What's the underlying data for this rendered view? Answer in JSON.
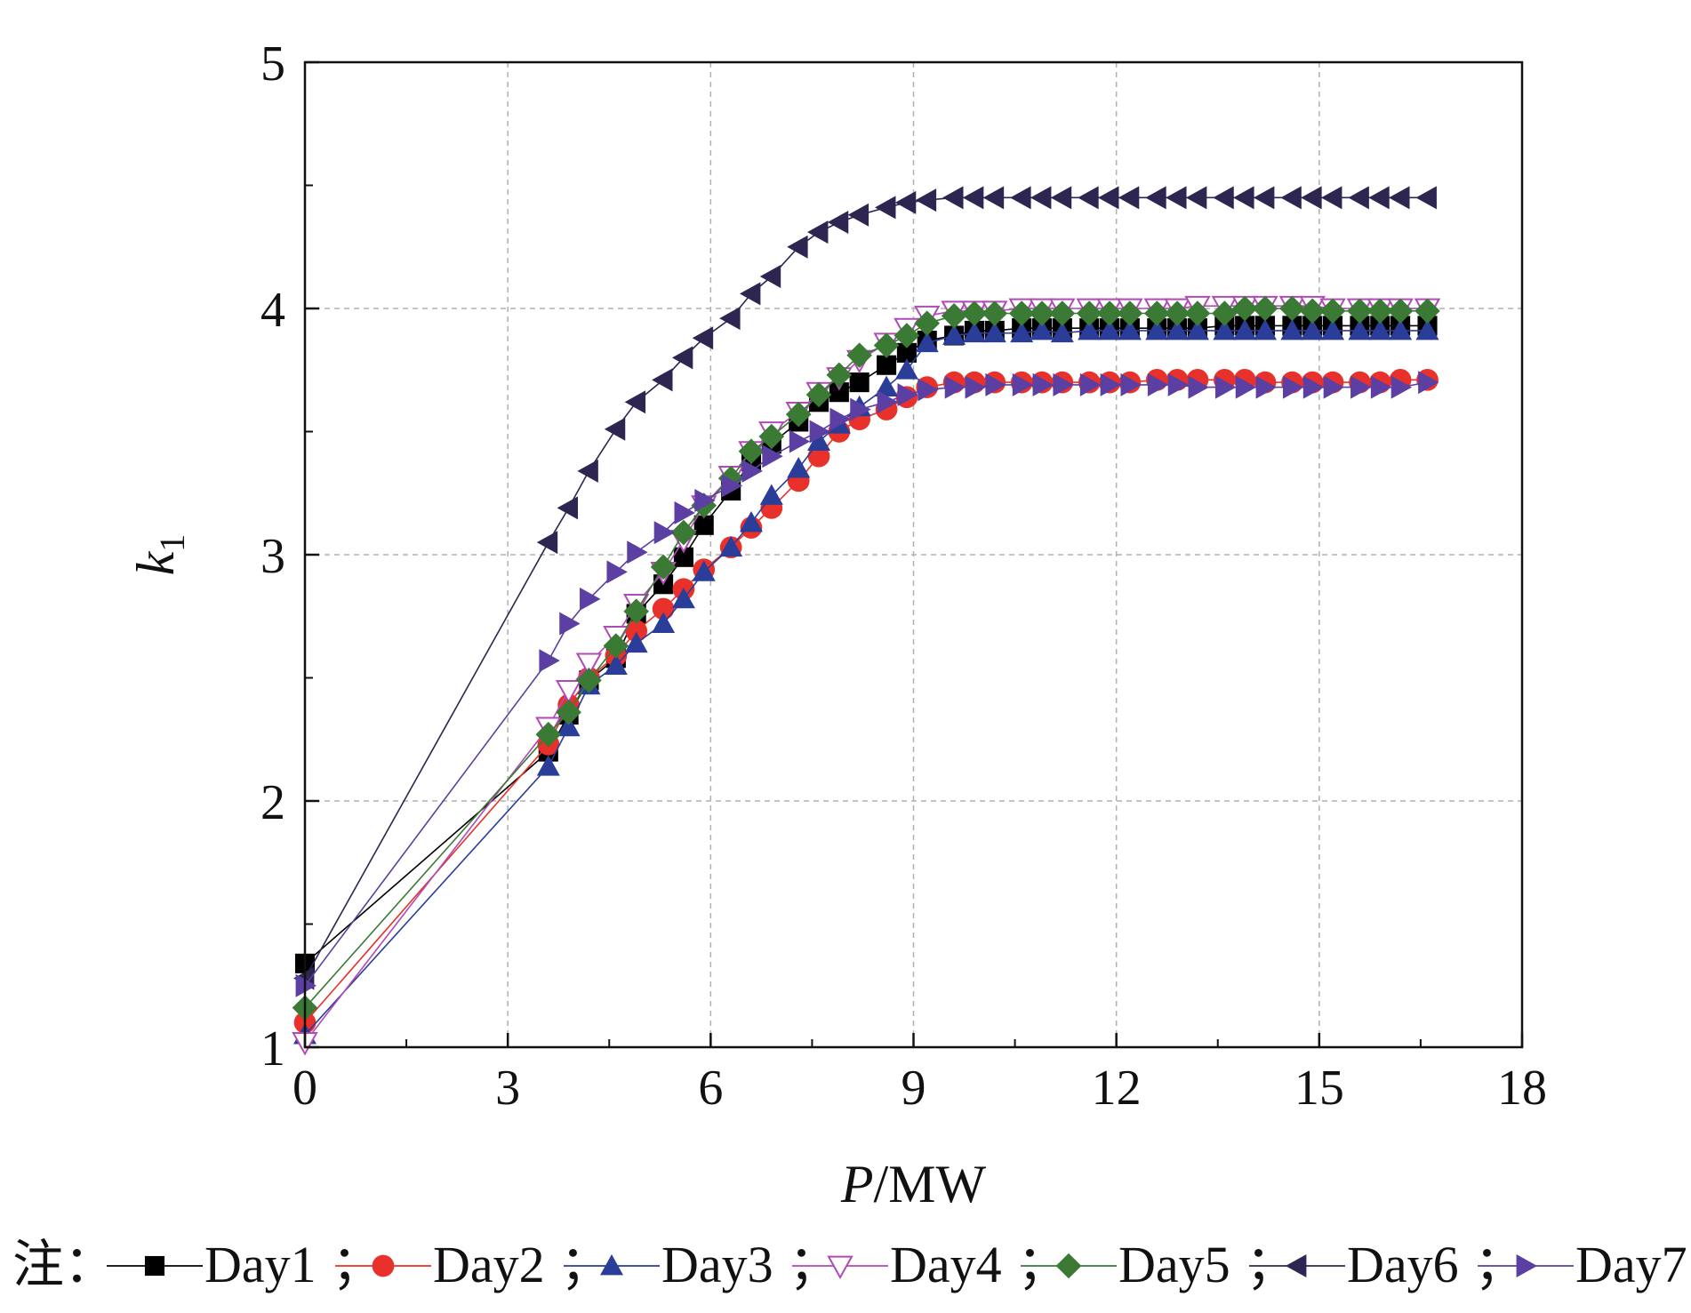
{
  "chart_data": {
    "type": "line",
    "xlabel": {
      "italic": "P",
      "rest": "/MW"
    },
    "ylabel": {
      "italic": "k",
      "subscript": "1"
    },
    "xlim": [
      0,
      18
    ],
    "ylim": [
      1,
      5
    ],
    "xticks": [
      "0",
      "3",
      "6",
      "9",
      "12",
      "15",
      "18"
    ],
    "yticks": [
      "1",
      "2",
      "3",
      "4",
      "5"
    ],
    "grid": true,
    "legend_position": "bottom",
    "legend_note": "注：",
    "legend_sep": "；",
    "legend_end": "。",
    "series": [
      {
        "name": "Day1",
        "color": "#000000",
        "marker": "square",
        "points": [
          [
            0,
            1.34
          ],
          [
            3.6,
            2.2
          ],
          [
            3.9,
            2.35
          ],
          [
            4.2,
            2.49
          ],
          [
            4.6,
            2.58
          ],
          [
            4.9,
            2.76
          ],
          [
            5.3,
            2.88
          ],
          [
            5.6,
            2.99
          ],
          [
            5.9,
            3.12
          ],
          [
            6.3,
            3.26
          ],
          [
            6.6,
            3.38
          ],
          [
            6.9,
            3.45
          ],
          [
            7.3,
            3.54
          ],
          [
            7.6,
            3.62
          ],
          [
            7.9,
            3.66
          ],
          [
            8.2,
            3.7
          ],
          [
            8.6,
            3.77
          ],
          [
            8.9,
            3.82
          ],
          [
            9.2,
            3.87
          ],
          [
            9.6,
            3.89
          ],
          [
            9.9,
            3.91
          ],
          [
            10.2,
            3.91
          ],
          [
            10.6,
            3.92
          ],
          [
            10.9,
            3.92
          ],
          [
            11.2,
            3.92
          ],
          [
            11.6,
            3.92
          ],
          [
            11.9,
            3.92
          ],
          [
            12.2,
            3.92
          ],
          [
            12.6,
            3.92
          ],
          [
            12.9,
            3.92
          ],
          [
            13.2,
            3.92
          ],
          [
            13.6,
            3.93
          ],
          [
            13.9,
            3.93
          ],
          [
            14.2,
            3.93
          ],
          [
            14.6,
            3.93
          ],
          [
            14.9,
            3.93
          ],
          [
            15.2,
            3.93
          ],
          [
            15.6,
            3.93
          ],
          [
            15.9,
            3.93
          ],
          [
            16.2,
            3.93
          ],
          [
            16.6,
            3.93
          ]
        ]
      },
      {
        "name": "Day2",
        "color": "#e8312a",
        "marker": "circle",
        "points": [
          [
            0,
            1.1
          ],
          [
            3.6,
            2.23
          ],
          [
            3.9,
            2.39
          ],
          [
            4.2,
            2.5
          ],
          [
            4.6,
            2.59
          ],
          [
            4.9,
            2.69
          ],
          [
            5.3,
            2.78
          ],
          [
            5.6,
            2.86
          ],
          [
            5.9,
            2.94
          ],
          [
            6.3,
            3.03
          ],
          [
            6.6,
            3.11
          ],
          [
            6.9,
            3.19
          ],
          [
            7.3,
            3.3
          ],
          [
            7.6,
            3.4
          ],
          [
            7.9,
            3.5
          ],
          [
            8.2,
            3.55
          ],
          [
            8.6,
            3.59
          ],
          [
            8.9,
            3.64
          ],
          [
            9.2,
            3.68
          ],
          [
            9.6,
            3.7
          ],
          [
            9.9,
            3.7
          ],
          [
            10.2,
            3.7
          ],
          [
            10.6,
            3.7
          ],
          [
            10.9,
            3.7
          ],
          [
            11.2,
            3.7
          ],
          [
            11.6,
            3.7
          ],
          [
            11.9,
            3.7
          ],
          [
            12.2,
            3.7
          ],
          [
            12.6,
            3.71
          ],
          [
            12.9,
            3.71
          ],
          [
            13.2,
            3.71
          ],
          [
            13.6,
            3.71
          ],
          [
            13.9,
            3.71
          ],
          [
            14.2,
            3.7
          ],
          [
            14.6,
            3.7
          ],
          [
            14.9,
            3.7
          ],
          [
            15.2,
            3.7
          ],
          [
            15.6,
            3.7
          ],
          [
            15.9,
            3.7
          ],
          [
            16.2,
            3.71
          ],
          [
            16.6,
            3.71
          ]
        ]
      },
      {
        "name": "Day3",
        "color": "#2a3d99",
        "marker": "triangle-up",
        "points": [
          [
            0,
            1.05
          ],
          [
            3.6,
            2.14
          ],
          [
            3.9,
            2.3
          ],
          [
            4.2,
            2.47
          ],
          [
            4.6,
            2.55
          ],
          [
            4.9,
            2.64
          ],
          [
            5.3,
            2.72
          ],
          [
            5.6,
            2.82
          ],
          [
            5.9,
            2.93
          ],
          [
            6.3,
            3.03
          ],
          [
            6.6,
            3.13
          ],
          [
            6.9,
            3.24
          ],
          [
            7.3,
            3.35
          ],
          [
            7.6,
            3.46
          ],
          [
            7.9,
            3.53
          ],
          [
            8.2,
            3.6
          ],
          [
            8.6,
            3.68
          ],
          [
            8.9,
            3.75
          ],
          [
            9.2,
            3.86
          ],
          [
            9.6,
            3.89
          ],
          [
            9.9,
            3.9
          ],
          [
            10.2,
            3.9
          ],
          [
            10.6,
            3.9
          ],
          [
            10.9,
            3.91
          ],
          [
            11.2,
            3.9
          ],
          [
            11.6,
            3.91
          ],
          [
            11.9,
            3.91
          ],
          [
            12.2,
            3.91
          ],
          [
            12.6,
            3.91
          ],
          [
            12.9,
            3.91
          ],
          [
            13.2,
            3.91
          ],
          [
            13.6,
            3.91
          ],
          [
            13.9,
            3.91
          ],
          [
            14.2,
            3.91
          ],
          [
            14.6,
            3.91
          ],
          [
            14.9,
            3.91
          ],
          [
            15.2,
            3.91
          ],
          [
            15.6,
            3.91
          ],
          [
            15.9,
            3.91
          ],
          [
            16.2,
            3.91
          ],
          [
            16.6,
            3.91
          ]
        ]
      },
      {
        "name": "Day4",
        "color": "#b04ab5",
        "marker": "triangle-down-open",
        "points": [
          [
            0,
            1.02
          ],
          [
            3.6,
            2.3
          ],
          [
            3.9,
            2.45
          ],
          [
            4.2,
            2.56
          ],
          [
            4.6,
            2.67
          ],
          [
            4.9,
            2.8
          ],
          [
            5.3,
            2.93
          ],
          [
            5.6,
            3.06
          ],
          [
            5.9,
            3.2
          ],
          [
            6.3,
            3.32
          ],
          [
            6.6,
            3.42
          ],
          [
            6.9,
            3.5
          ],
          [
            7.3,
            3.58
          ],
          [
            7.6,
            3.66
          ],
          [
            7.9,
            3.72
          ],
          [
            8.2,
            3.79
          ],
          [
            8.6,
            3.86
          ],
          [
            8.9,
            3.92
          ],
          [
            9.2,
            3.97
          ],
          [
            9.6,
            3.99
          ],
          [
            9.9,
            3.99
          ],
          [
            10.2,
            3.99
          ],
          [
            10.6,
            4.0
          ],
          [
            10.9,
            4.0
          ],
          [
            11.2,
            4.0
          ],
          [
            11.6,
            4.0
          ],
          [
            11.9,
            4.0
          ],
          [
            12.2,
            4.0
          ],
          [
            12.6,
            4.0
          ],
          [
            12.9,
            4.0
          ],
          [
            13.2,
            4.01
          ],
          [
            13.6,
            4.01
          ],
          [
            13.9,
            4.01
          ],
          [
            14.2,
            4.01
          ],
          [
            14.6,
            4.01
          ],
          [
            14.9,
            4.01
          ],
          [
            15.2,
            4.0
          ],
          [
            15.6,
            4.0
          ],
          [
            15.9,
            4.0
          ],
          [
            16.2,
            4.0
          ],
          [
            16.6,
            4.0
          ]
        ]
      },
      {
        "name": "Day5",
        "color": "#3a7a35",
        "marker": "diamond",
        "points": [
          [
            0,
            1.16
          ],
          [
            3.6,
            2.27
          ],
          [
            3.9,
            2.36
          ],
          [
            4.2,
            2.49
          ],
          [
            4.6,
            2.63
          ],
          [
            4.9,
            2.77
          ],
          [
            5.3,
            2.95
          ],
          [
            5.6,
            3.09
          ],
          [
            5.9,
            3.2
          ],
          [
            6.3,
            3.31
          ],
          [
            6.6,
            3.42
          ],
          [
            6.9,
            3.48
          ],
          [
            7.3,
            3.57
          ],
          [
            7.6,
            3.65
          ],
          [
            7.9,
            3.73
          ],
          [
            8.2,
            3.81
          ],
          [
            8.6,
            3.85
          ],
          [
            8.9,
            3.89
          ],
          [
            9.2,
            3.94
          ],
          [
            9.6,
            3.97
          ],
          [
            9.9,
            3.98
          ],
          [
            10.2,
            3.98
          ],
          [
            10.6,
            3.98
          ],
          [
            10.9,
            3.98
          ],
          [
            11.2,
            3.98
          ],
          [
            11.6,
            3.98
          ],
          [
            11.9,
            3.98
          ],
          [
            12.2,
            3.98
          ],
          [
            12.6,
            3.98
          ],
          [
            12.9,
            3.98
          ],
          [
            13.2,
            3.98
          ],
          [
            13.6,
            3.98
          ],
          [
            13.9,
            4.0
          ],
          [
            14.2,
            4.0
          ],
          [
            14.6,
            4.0
          ],
          [
            14.9,
            3.99
          ],
          [
            15.2,
            3.99
          ],
          [
            15.6,
            3.99
          ],
          [
            15.9,
            3.99
          ],
          [
            16.2,
            3.99
          ],
          [
            16.6,
            3.99
          ]
        ]
      },
      {
        "name": "Day6",
        "color": "#2e2550",
        "marker": "triangle-left",
        "points": [
          [
            0,
            1.28
          ],
          [
            3.6,
            3.05
          ],
          [
            3.9,
            3.19
          ],
          [
            4.2,
            3.34
          ],
          [
            4.6,
            3.51
          ],
          [
            4.9,
            3.62
          ],
          [
            5.3,
            3.71
          ],
          [
            5.6,
            3.8
          ],
          [
            5.9,
            3.88
          ],
          [
            6.3,
            3.96
          ],
          [
            6.6,
            4.06
          ],
          [
            6.9,
            4.13
          ],
          [
            7.3,
            4.25
          ],
          [
            7.6,
            4.31
          ],
          [
            7.9,
            4.35
          ],
          [
            8.2,
            4.38
          ],
          [
            8.6,
            4.41
          ],
          [
            8.9,
            4.43
          ],
          [
            9.2,
            4.44
          ],
          [
            9.6,
            4.45
          ],
          [
            9.9,
            4.45
          ],
          [
            10.2,
            4.45
          ],
          [
            10.6,
            4.45
          ],
          [
            10.9,
            4.45
          ],
          [
            11.2,
            4.45
          ],
          [
            11.6,
            4.45
          ],
          [
            11.9,
            4.45
          ],
          [
            12.2,
            4.45
          ],
          [
            12.6,
            4.45
          ],
          [
            12.9,
            4.45
          ],
          [
            13.2,
            4.45
          ],
          [
            13.6,
            4.45
          ],
          [
            13.9,
            4.45
          ],
          [
            14.2,
            4.45
          ],
          [
            14.6,
            4.45
          ],
          [
            14.9,
            4.45
          ],
          [
            15.2,
            4.45
          ],
          [
            15.6,
            4.45
          ],
          [
            15.9,
            4.45
          ],
          [
            16.2,
            4.45
          ],
          [
            16.6,
            4.45
          ]
        ]
      },
      {
        "name": "Day7",
        "color": "#5b3fa2",
        "marker": "triangle-right",
        "points": [
          [
            0,
            1.25
          ],
          [
            3.6,
            2.57
          ],
          [
            3.9,
            2.72
          ],
          [
            4.2,
            2.82
          ],
          [
            4.6,
            2.93
          ],
          [
            4.9,
            3.01
          ],
          [
            5.3,
            3.09
          ],
          [
            5.6,
            3.17
          ],
          [
            5.9,
            3.22
          ],
          [
            6.3,
            3.28
          ],
          [
            6.6,
            3.34
          ],
          [
            6.9,
            3.4
          ],
          [
            7.3,
            3.46
          ],
          [
            7.6,
            3.5
          ],
          [
            7.9,
            3.55
          ],
          [
            8.2,
            3.59
          ],
          [
            8.6,
            3.62
          ],
          [
            8.9,
            3.65
          ],
          [
            9.2,
            3.67
          ],
          [
            9.6,
            3.68
          ],
          [
            9.9,
            3.68
          ],
          [
            10.2,
            3.69
          ],
          [
            10.6,
            3.69
          ],
          [
            10.9,
            3.69
          ],
          [
            11.2,
            3.69
          ],
          [
            11.6,
            3.69
          ],
          [
            11.9,
            3.69
          ],
          [
            12.2,
            3.69
          ],
          [
            12.6,
            3.69
          ],
          [
            12.9,
            3.69
          ],
          [
            13.2,
            3.68
          ],
          [
            13.6,
            3.68
          ],
          [
            13.9,
            3.68
          ],
          [
            14.2,
            3.68
          ],
          [
            14.6,
            3.68
          ],
          [
            14.9,
            3.68
          ],
          [
            15.2,
            3.68
          ],
          [
            15.6,
            3.68
          ],
          [
            15.9,
            3.68
          ],
          [
            16.2,
            3.68
          ],
          [
            16.6,
            3.7
          ]
        ]
      }
    ]
  }
}
